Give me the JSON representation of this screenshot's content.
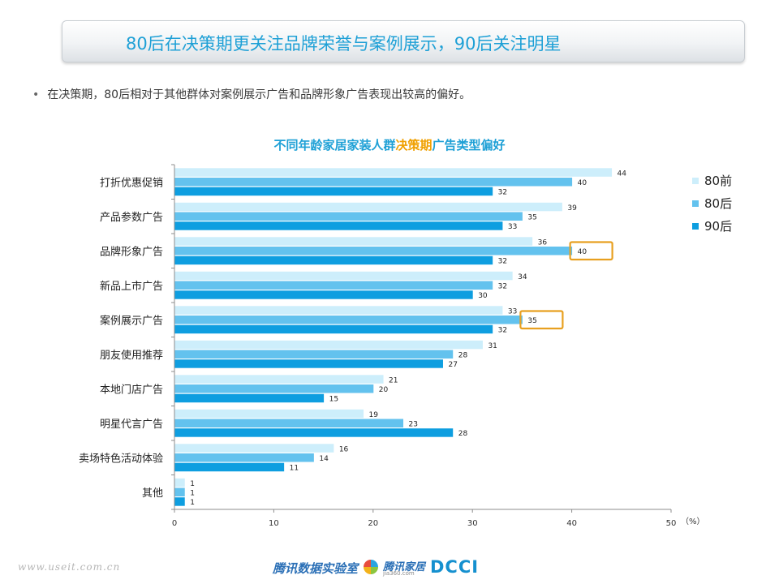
{
  "header": {
    "title": "80后在决策期更关注品牌荣誉与案例展示，90后关注明星"
  },
  "bullet": {
    "text": "在决策期，80后相对于其他群体对案例展示广告和品牌形象广告表现出较高的偏好。"
  },
  "chart_title": {
    "part1": "不同年龄家居家装人群",
    "part2": "决策期",
    "part3": "广告类型偏好"
  },
  "footer": {
    "url": "www.useit.com.cn",
    "logo1": "腾讯数据实验室",
    "logo2": "腾讯家居",
    "logo2_sub": "jia360.com",
    "logo3": "DCCI"
  },
  "chart_data": {
    "type": "bar",
    "orientation": "horizontal",
    "categories": [
      "打折优惠促销",
      "产品参数广告",
      "品牌形象广告",
      "新品上市广告",
      "案例展示广告",
      "朋友使用推荐",
      "本地门店广告",
      "明星代言广告",
      "卖场特色活动体验",
      "其他"
    ],
    "series": [
      {
        "name": "80前",
        "color": "#cdeefb",
        "values": [
          44,
          39,
          36,
          34,
          33,
          31,
          21,
          19,
          16,
          1
        ]
      },
      {
        "name": "80后",
        "color": "#63c2ee",
        "values": [
          40,
          35,
          40,
          32,
          35,
          28,
          20,
          23,
          14,
          1
        ]
      },
      {
        "name": "90后",
        "color": "#0e9ee0",
        "values": [
          32,
          33,
          32,
          30,
          32,
          27,
          15,
          28,
          11,
          1
        ]
      }
    ],
    "xlim": [
      0,
      50
    ],
    "xticks": [
      0,
      10,
      20,
      30,
      40,
      50
    ],
    "x_unit": "（%）",
    "legend_position": "right",
    "highlights": [
      {
        "category_index": 2,
        "series_index": 1
      },
      {
        "category_index": 4,
        "series_index": 1
      }
    ],
    "highlight_color": "#e8a020"
  }
}
